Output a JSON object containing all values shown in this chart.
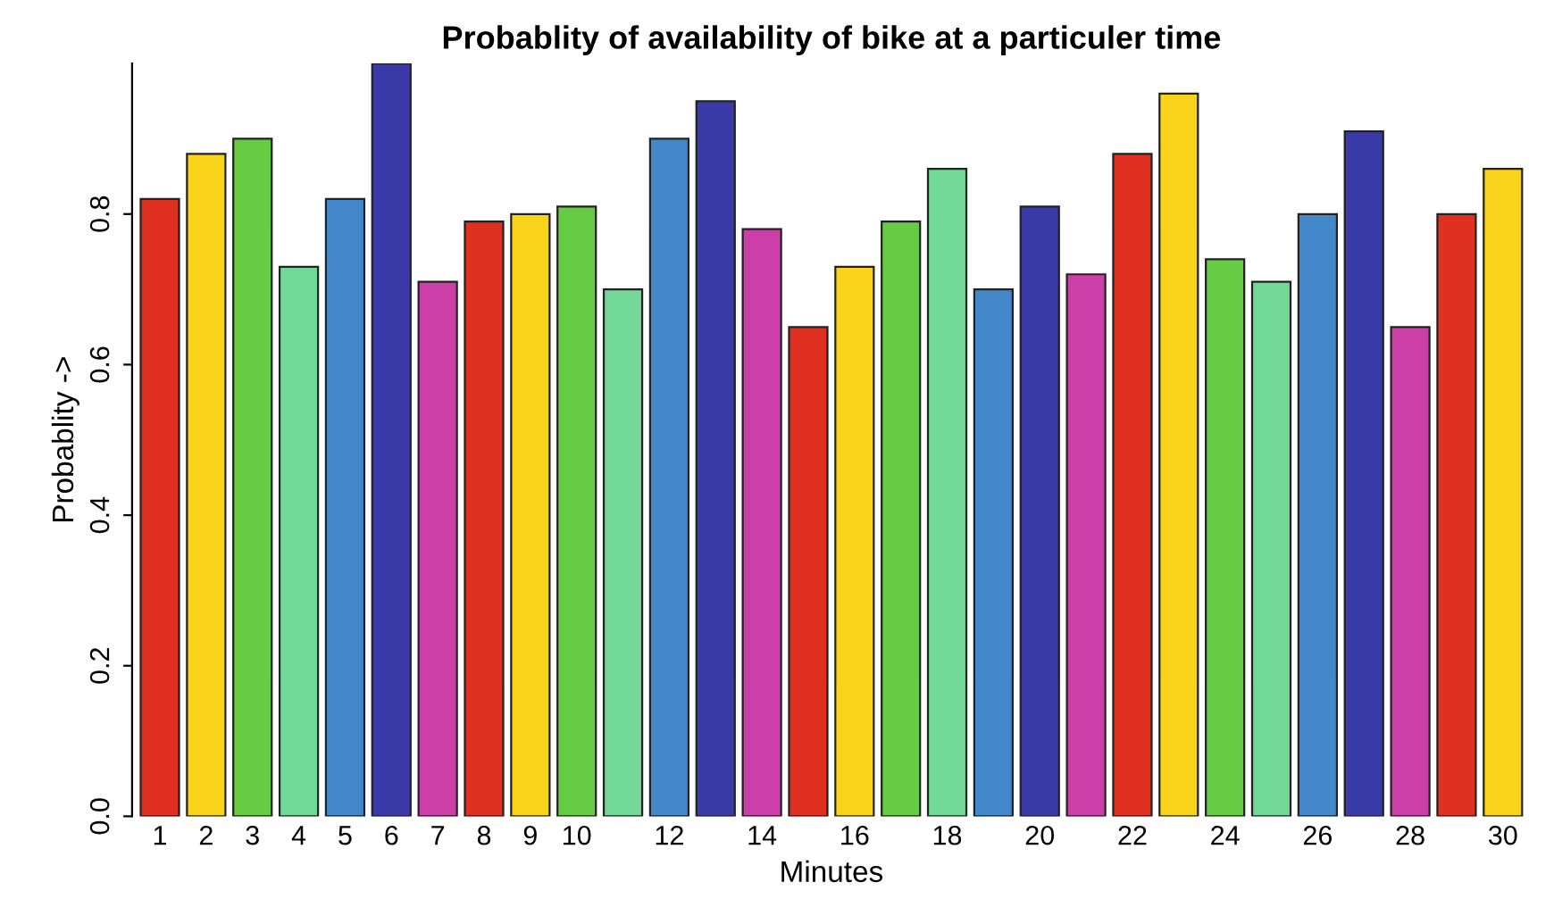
{
  "chart_data": {
    "type": "bar",
    "title": "Probablity of availability of bike at a particuler time",
    "xlabel": "Minutes",
    "ylabel": "Probablity ->",
    "categories": [
      "1",
      "2",
      "3",
      "4",
      "5",
      "6",
      "7",
      "8",
      "9",
      "10",
      null,
      "12",
      null,
      "14",
      null,
      "16",
      null,
      "18",
      null,
      "20",
      null,
      "22",
      null,
      "24",
      null,
      "26",
      null,
      "28",
      null,
      "30"
    ],
    "values": [
      0.82,
      0.88,
      0.9,
      0.73,
      0.82,
      1.0,
      0.71,
      0.79,
      0.8,
      0.81,
      0.7,
      0.9,
      0.95,
      0.78,
      0.65,
      0.73,
      0.79,
      0.86,
      0.7,
      0.81,
      0.72,
      0.88,
      0.96,
      0.74,
      0.71,
      0.8,
      0.91,
      0.65,
      0.8,
      0.86
    ],
    "colors": [
      "#e03020",
      "#f9d21a",
      "#66cc44",
      "#72d898",
      "#4488cc",
      "#3a3aa8",
      "#cc3ea8",
      "#e03020",
      "#f9d21a",
      "#66cc44",
      "#72d898",
      "#4488cc",
      "#3a3aa8",
      "#cc3ea8",
      "#e03020",
      "#f9d21a",
      "#66cc44",
      "#72d898",
      "#4488cc",
      "#3a3aa8",
      "#cc3ea8",
      "#e03020",
      "#f9d21a",
      "#66cc44",
      "#72d898",
      "#4488cc",
      "#3a3aa8",
      "#cc3ea8",
      "#e03020",
      "#f9d21a"
    ],
    "ylim": [
      0,
      1.0
    ],
    "yticks": [
      {
        "value": 0,
        "label": "0.0"
      },
      {
        "value": 0.2,
        "label": "0.2"
      },
      {
        "value": 0.4,
        "label": "0.4"
      },
      {
        "value": 0.6,
        "label": "0.6"
      },
      {
        "value": 0.8,
        "label": "0.8"
      }
    ],
    "grid": false,
    "legend": false
  }
}
